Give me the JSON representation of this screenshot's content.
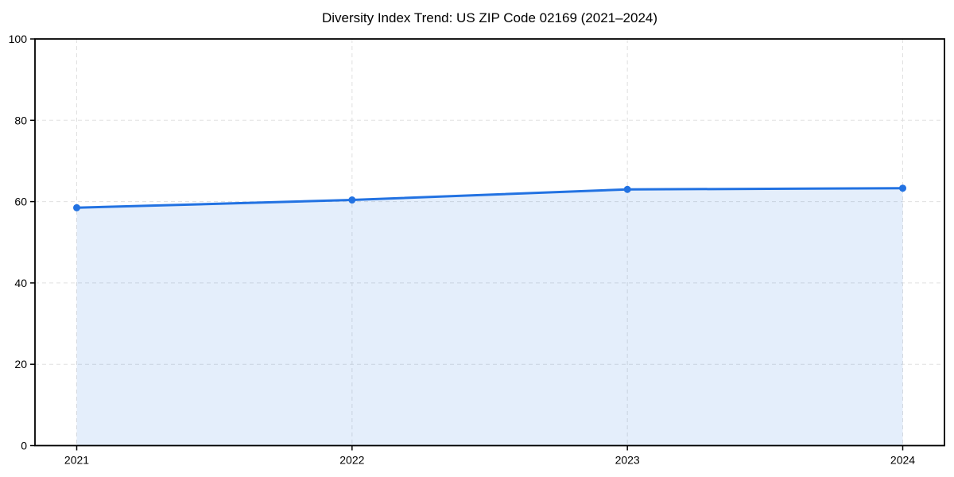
{
  "figure": {
    "background": "#ffffff"
  },
  "chart_data": {
    "type": "area",
    "title": "Diversity Index Trend: US ZIP Code 02169 (2021–2024)",
    "categories": [
      "2021",
      "2022",
      "2023",
      "2024"
    ],
    "series": [
      {
        "name": "Diversity Index",
        "values": [
          58.5,
          60.4,
          63.0,
          63.3
        ]
      }
    ],
    "xlabel": "",
    "ylabel": "",
    "ylim": [
      0,
      100
    ],
    "yticks": [
      0,
      20,
      40,
      60,
      80,
      100
    ],
    "grid": true,
    "grid_style": "dashed",
    "legend_position": "none",
    "marker": "circle",
    "colors": {
      "line": "#2272e2",
      "marker": "#2272e2",
      "fill": "#2272e2",
      "fill_opacity": 0.12,
      "grid": "#e0e0e0",
      "spine": "#000000",
      "tick_label": "#000000",
      "title": "#000000"
    }
  }
}
